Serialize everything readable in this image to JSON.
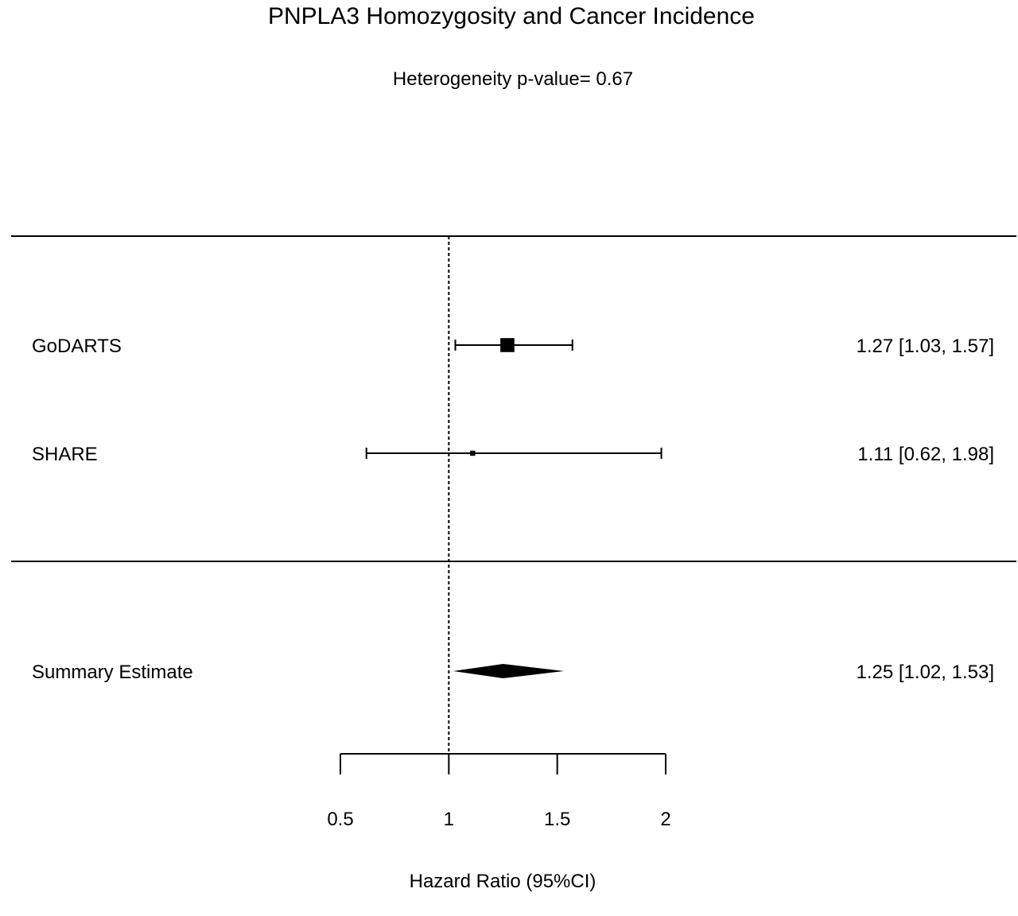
{
  "chart_data": {
    "type": "forest",
    "title": "PNPLA3 Homozygosity and Cancer Incidence",
    "subtitle": "Heterogeneity p-value= 0.67",
    "xlabel": "Hazard Ratio (95%CI)",
    "xlim": [
      0.5,
      2
    ],
    "x_ticks": [
      "0.5",
      "1",
      "1.5",
      "2"
    ],
    "tick_values": [
      0.5,
      1,
      1.5,
      2
    ],
    "reference_line": 1,
    "studies": [
      {
        "name": "GoDARTS",
        "estimate": 1.27,
        "lower": 1.03,
        "upper": 1.57,
        "label": "1.27 [1.03, 1.57]",
        "weight": 0.85
      },
      {
        "name": "SHARE",
        "estimate": 1.11,
        "lower": 0.62,
        "upper": 1.98,
        "label": "1.11 [0.62, 1.98]",
        "weight": 0.15
      }
    ],
    "summary": {
      "name": "Summary Estimate",
      "estimate": 1.25,
      "lower": 1.02,
      "upper": 1.53,
      "label": "1.25 [1.02, 1.53]"
    }
  }
}
